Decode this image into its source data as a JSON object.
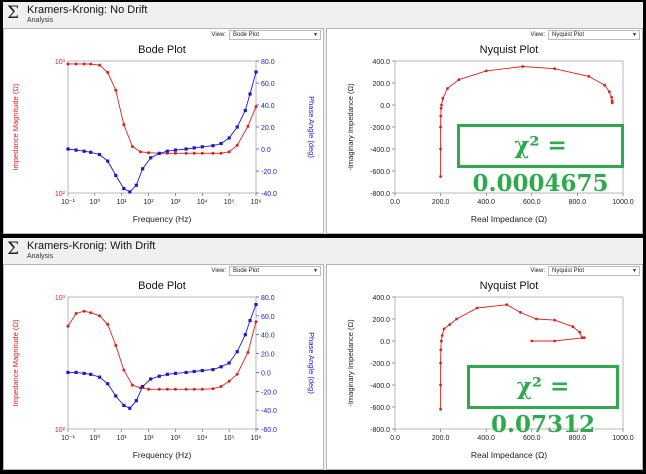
{
  "windows": [
    {
      "title": "Kramers-Kronig: No Drift",
      "subtitle": "Analysis",
      "view_label": "View:",
      "bode_view_value": "Bode Plot",
      "nyquist_view_value": "Nyquist Plot",
      "chi_text": "χ² = 0.0004675"
    },
    {
      "title": "Kramers-Kronig: With Drift",
      "subtitle": "Analysis",
      "view_label": "View:",
      "bode_view_value": "Bode Plot",
      "nyquist_view_value": "Nyquist Plot",
      "chi_text": "χ² = 0.07312"
    }
  ],
  "colors": {
    "magnitude": "#e02020",
    "phase": "#1a1acc",
    "chi_box": "#2eaa4c"
  },
  "chart_data": [
    {
      "type": "line",
      "title": "Bode Plot",
      "xlabel": "Frequency (Hz)",
      "ylabel": "Impedance Magnitude (Ω)",
      "y2label": "Phase Angle (deg)",
      "x_scale": "log",
      "y_scale": "log",
      "xlim": [
        0.1,
        1000000
      ],
      "ylim": [
        100,
        1000
      ],
      "y2lim": [
        -40,
        80
      ],
      "x_ticks": [
        "10⁻¹",
        "10⁰",
        "10¹",
        "10²",
        "10³",
        "10⁴",
        "10⁵",
        "10⁶"
      ],
      "y_ticks": [
        "10²",
        "10³"
      ],
      "y2_ticks": [
        "-40.0",
        "-20.0",
        "0.0",
        "20.0",
        "40.0",
        "60.0",
        "80.0"
      ],
      "series": [
        {
          "name": "magnitude",
          "axis": "left",
          "x": [
            0.1,
            0.2,
            0.4,
            0.7,
            1.5,
            3,
            6,
            12,
            25,
            50,
            100,
            250,
            500,
            1000,
            2500,
            5000,
            10000,
            25000,
            50000,
            100000,
            200000,
            500000,
            1000000
          ],
          "y": [
            950,
            950,
            950,
            948,
            930,
            820,
            600,
            330,
            225,
            205,
            202,
            200,
            200,
            200,
            200,
            200,
            200,
            200,
            200,
            205,
            230,
            320,
            450
          ]
        },
        {
          "name": "phase",
          "axis": "right",
          "x": [
            0.1,
            0.2,
            0.4,
            0.7,
            1.5,
            3,
            6,
            12,
            20,
            35,
            60,
            120,
            250,
            500,
            1000,
            2500,
            5000,
            10000,
            25000,
            50000,
            100000,
            200000,
            400000,
            600000,
            1000000
          ],
          "y": [
            0,
            -1,
            -2,
            -3,
            -5,
            -11,
            -24,
            -36,
            -39,
            -33,
            -18,
            -8,
            -4,
            -2,
            -1,
            0,
            1,
            2,
            3,
            5,
            10,
            20,
            35,
            50,
            70
          ]
        }
      ]
    },
    {
      "type": "scatter",
      "title": "Nyquist Plot",
      "xlabel": "Real Impedance (Ω)",
      "ylabel": "-Imaginary Impedance (Ω)",
      "xlim": [
        0,
        1000
      ],
      "ylim": [
        -800,
        400
      ],
      "x_ticks": [
        "0.0",
        "200.0",
        "400.0",
        "600.0",
        "800.0",
        "1000.0"
      ],
      "y_ticks": [
        "400.0",
        "200.0",
        "0.0",
        "-200.0",
        "-400.0",
        "-600.0",
        "-800.0"
      ],
      "x": [
        200,
        200,
        200,
        201,
        202,
        204,
        210,
        230,
        280,
        400,
        560,
        700,
        850,
        920,
        940,
        950,
        952,
        953
      ],
      "y": [
        -650,
        -400,
        -200,
        -100,
        -30,
        0,
        60,
        150,
        230,
        310,
        350,
        330,
        260,
        180,
        120,
        70,
        40,
        20
      ]
    },
    {
      "type": "line",
      "title": "Bode Plot",
      "xlabel": "Frequency (Hz)",
      "ylabel": "Impedance Magnitude (Ω)",
      "y2label": "Phase Angle (deg)",
      "x_scale": "log",
      "y_scale": "log",
      "xlim": [
        0.1,
        1000000
      ],
      "ylim": [
        100,
        1000
      ],
      "y2lim": [
        -60,
        80
      ],
      "x_ticks": [
        "10⁻¹",
        "10⁰",
        "10¹",
        "10²",
        "10³",
        "10⁴",
        "10⁵",
        "10⁶"
      ],
      "y_ticks": [
        "10²",
        "10³"
      ],
      "y2_ticks": [
        "-60.0",
        "-40.0",
        "-20.0",
        "0.0",
        "20.0",
        "40.0",
        "60.0",
        "80.0"
      ],
      "series": [
        {
          "name": "magnitude",
          "axis": "left",
          "x": [
            0.1,
            0.2,
            0.4,
            0.7,
            1.5,
            3,
            6,
            12,
            25,
            50,
            100,
            250,
            500,
            1000,
            2500,
            5000,
            10000,
            25000,
            50000,
            100000,
            200000,
            500000,
            1000000
          ],
          "y": [
            600,
            750,
            780,
            760,
            720,
            620,
            430,
            280,
            215,
            205,
            200,
            200,
            200,
            200,
            200,
            200,
            200,
            202,
            210,
            230,
            260,
            380,
            650
          ]
        },
        {
          "name": "phase",
          "axis": "right",
          "x": [
            0.1,
            0.2,
            0.4,
            0.7,
            1.5,
            3,
            6,
            12,
            20,
            35,
            60,
            120,
            250,
            500,
            1000,
            2500,
            5000,
            10000,
            25000,
            50000,
            100000,
            200000,
            400000,
            600000,
            1000000
          ],
          "y": [
            0,
            0,
            -1,
            -2,
            -5,
            -12,
            -25,
            -35,
            -38,
            -30,
            -15,
            -7,
            -4,
            -2,
            -1,
            0,
            1,
            2,
            3,
            6,
            10,
            22,
            40,
            55,
            72
          ]
        }
      ]
    },
    {
      "type": "scatter",
      "title": "Nyquist Plot",
      "xlabel": "Real Impedance (Ω)",
      "ylabel": "-Imaginary Impedance (Ω)",
      "xlim": [
        0,
        1000
      ],
      "ylim": [
        -800,
        400
      ],
      "x_ticks": [
        "0.0",
        "200.0",
        "400.0",
        "600.0",
        "800.0",
        "1000.0"
      ],
      "y_ticks": [
        "400.0",
        "200.0",
        "0.0",
        "-200.0",
        "-400.0",
        "-600.0",
        "-800.0"
      ],
      "x": [
        200,
        200,
        200,
        201,
        203,
        207,
        215,
        240,
        270,
        360,
        490,
        550,
        620,
        700,
        780,
        810,
        820,
        830,
        700,
        600
      ],
      "y": [
        -620,
        -400,
        -200,
        -80,
        0,
        50,
        110,
        150,
        200,
        300,
        330,
        260,
        200,
        190,
        130,
        80,
        30,
        30,
        0,
        0
      ]
    }
  ]
}
